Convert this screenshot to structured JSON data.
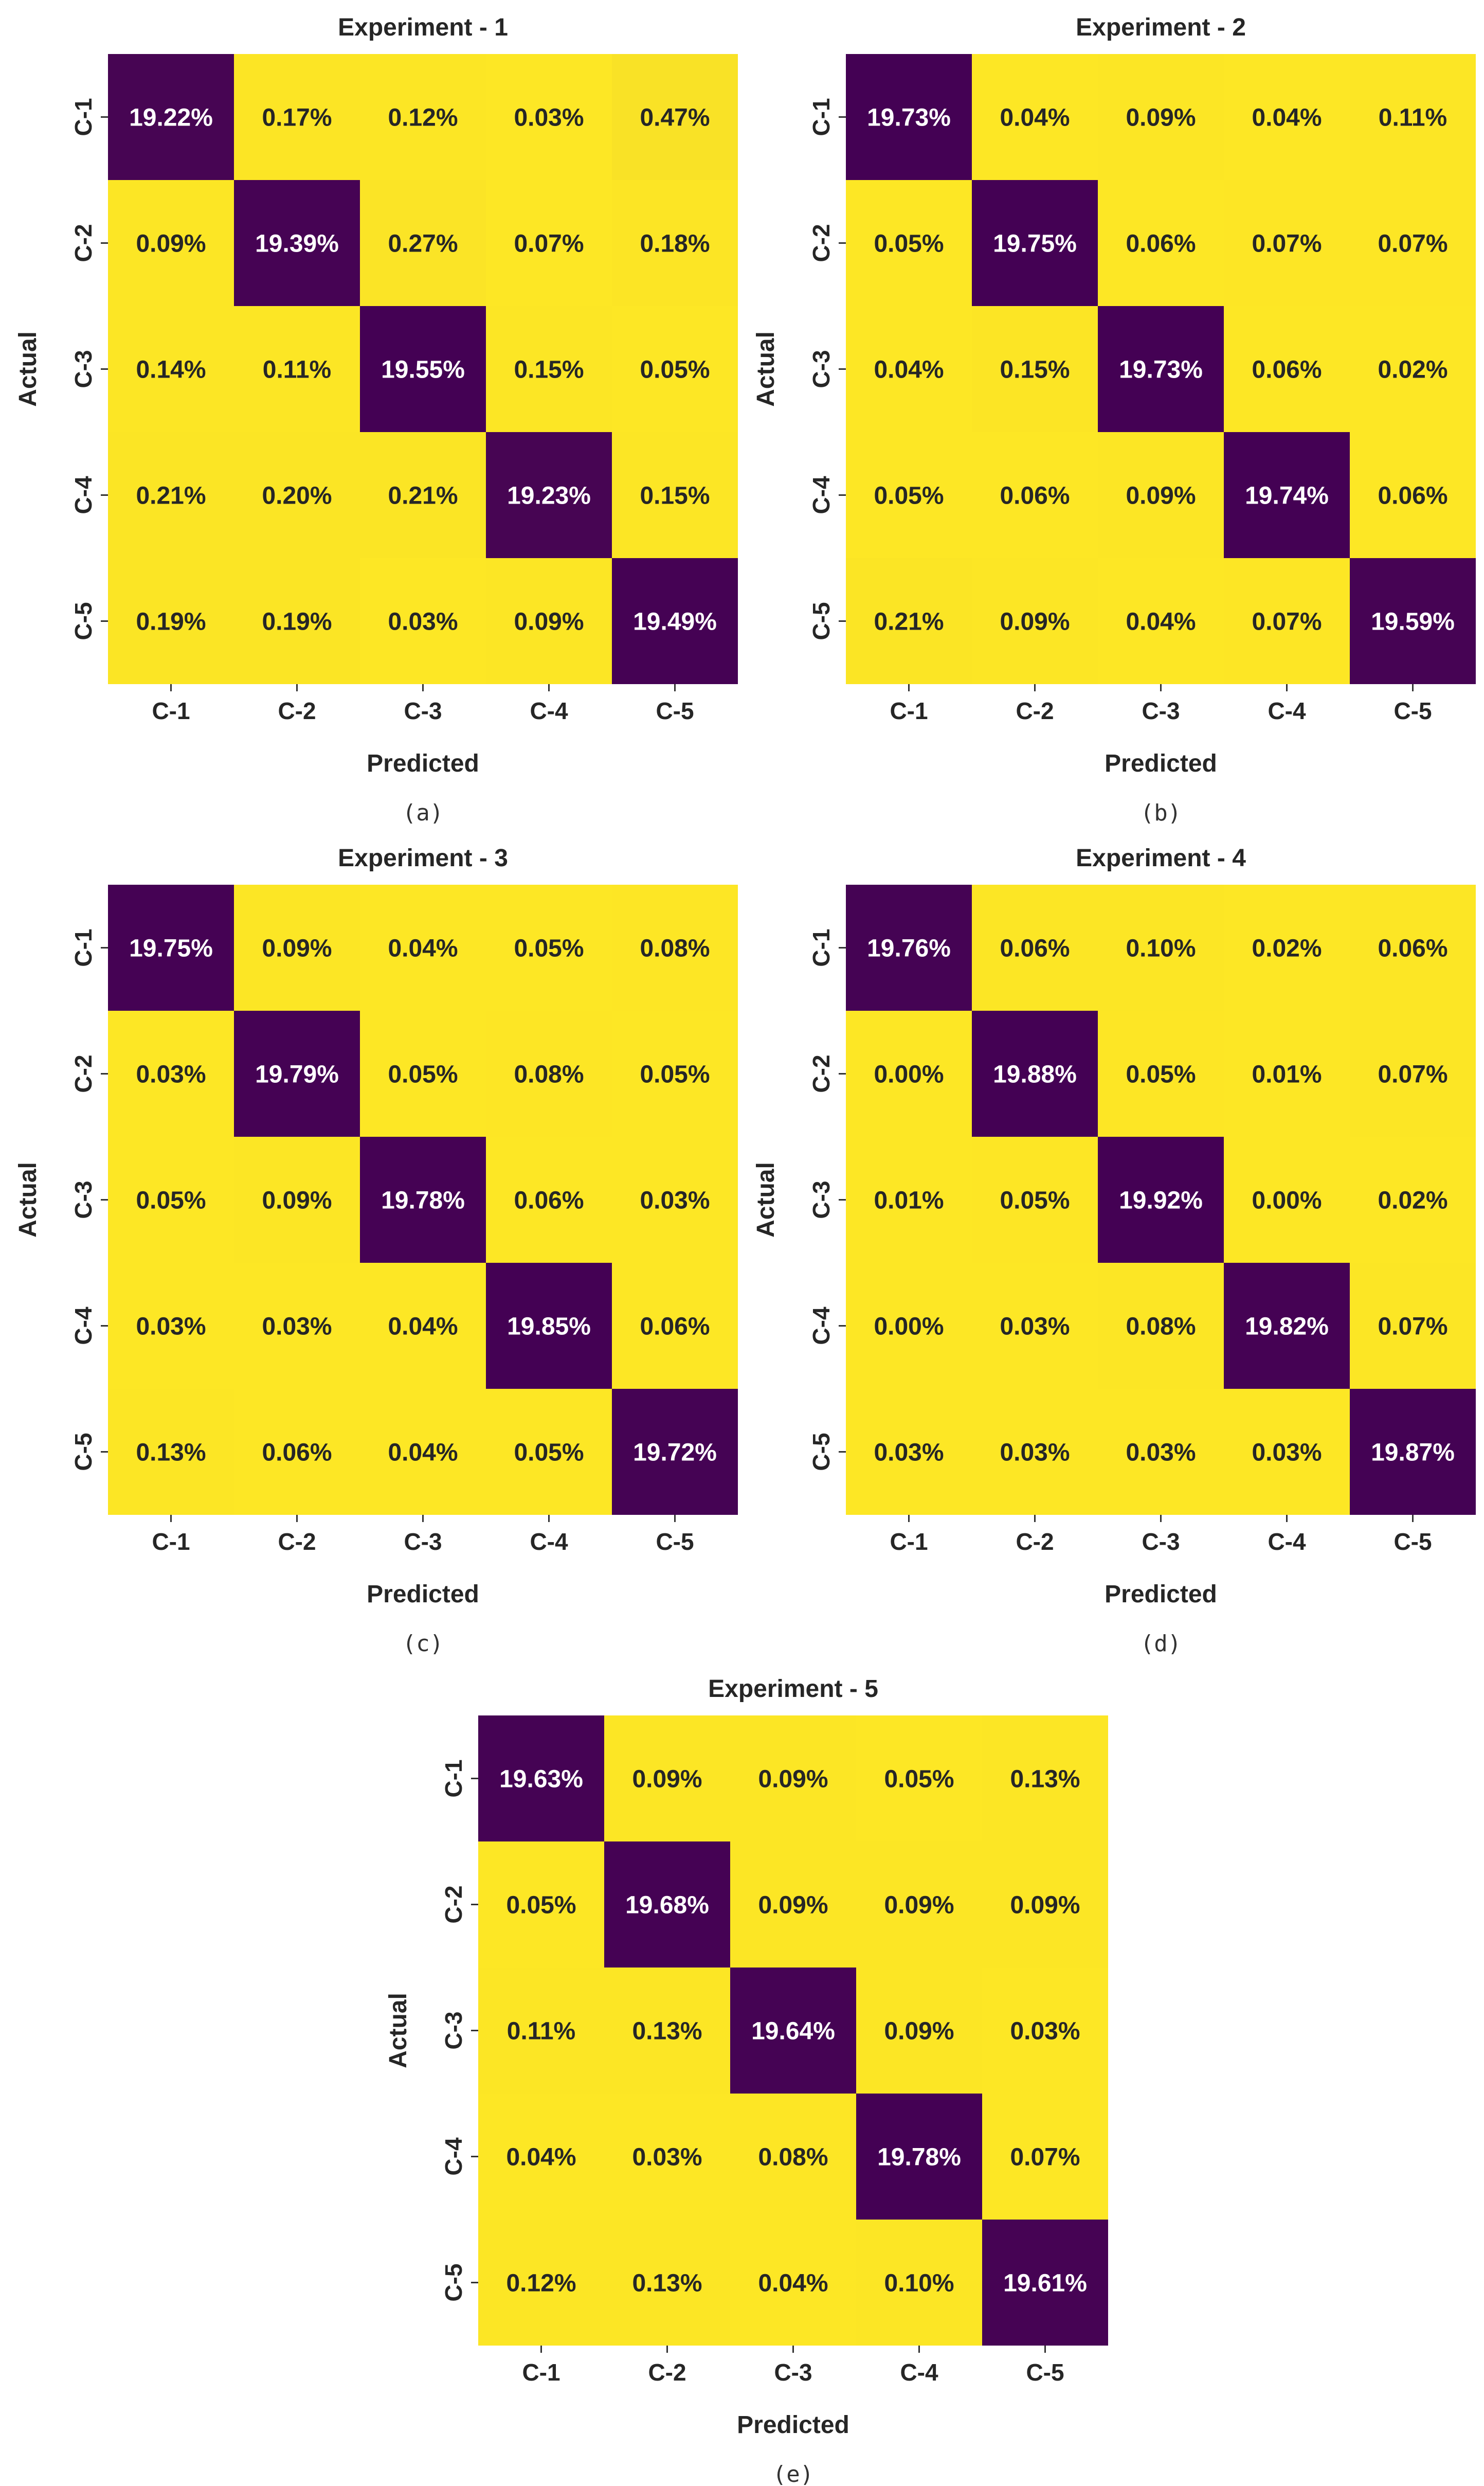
{
  "colors": {
    "high": "#440154",
    "low": "#fde725",
    "text_on_high": "#ffffff",
    "text_on_low": "#262626"
  },
  "chart_data": [
    {
      "type": "heatmap",
      "title": "Experiment - 1",
      "caption": "(a)",
      "xlabel": "Predicted",
      "ylabel": "Actual",
      "x_categories": [
        "C-1",
        "C-2",
        "C-3",
        "C-4",
        "C-5"
      ],
      "y_categories": [
        "C-1",
        "C-2",
        "C-3",
        "C-4",
        "C-5"
      ],
      "value_unit": "%",
      "values": [
        [
          19.22,
          0.17,
          0.12,
          0.03,
          0.47
        ],
        [
          0.09,
          19.39,
          0.27,
          0.07,
          0.18
        ],
        [
          0.14,
          0.11,
          19.55,
          0.15,
          0.05
        ],
        [
          0.21,
          0.2,
          0.21,
          19.23,
          0.15
        ],
        [
          0.19,
          0.19,
          0.03,
          0.09,
          19.49
        ]
      ],
      "labels": [
        [
          "19.22%",
          "0.17%",
          "0.12%",
          "0.03%",
          "0.47%"
        ],
        [
          "0.09%",
          "19.39%",
          "0.27%",
          "0.07%",
          "0.18%"
        ],
        [
          "0.14%",
          "0.11%",
          "19.55%",
          "0.15%",
          "0.05%"
        ],
        [
          "0.21%",
          "0.20%",
          "0.21%",
          "19.23%",
          "0.15%"
        ],
        [
          "0.19%",
          "0.19%",
          "0.03%",
          "0.09%",
          "19.49%"
        ]
      ]
    },
    {
      "type": "heatmap",
      "title": "Experiment - 2",
      "caption": "(b)",
      "xlabel": "Predicted",
      "ylabel": "Actual",
      "x_categories": [
        "C-1",
        "C-2",
        "C-3",
        "C-4",
        "C-5"
      ],
      "y_categories": [
        "C-1",
        "C-2",
        "C-3",
        "C-4",
        "C-5"
      ],
      "value_unit": "%",
      "values": [
        [
          19.73,
          0.04,
          0.09,
          0.04,
          0.11
        ],
        [
          0.05,
          19.75,
          0.06,
          0.07,
          0.07
        ],
        [
          0.04,
          0.15,
          19.73,
          0.06,
          0.02
        ],
        [
          0.05,
          0.06,
          0.09,
          19.74,
          0.06
        ],
        [
          0.21,
          0.09,
          0.04,
          0.07,
          19.59
        ]
      ],
      "labels": [
        [
          "19.73%",
          "0.04%",
          "0.09%",
          "0.04%",
          "0.11%"
        ],
        [
          "0.05%",
          "19.75%",
          "0.06%",
          "0.07%",
          "0.07%"
        ],
        [
          "0.04%",
          "0.15%",
          "19.73%",
          "0.06%",
          "0.02%"
        ],
        [
          "0.05%",
          "0.06%",
          "0.09%",
          "19.74%",
          "0.06%"
        ],
        [
          "0.21%",
          "0.09%",
          "0.04%",
          "0.07%",
          "19.59%"
        ]
      ]
    },
    {
      "type": "heatmap",
      "title": "Experiment - 3",
      "caption": "(c)",
      "xlabel": "Predicted",
      "ylabel": "Actual",
      "x_categories": [
        "C-1",
        "C-2",
        "C-3",
        "C-4",
        "C-5"
      ],
      "y_categories": [
        "C-1",
        "C-2",
        "C-3",
        "C-4",
        "C-5"
      ],
      "value_unit": "%",
      "values": [
        [
          19.75,
          0.09,
          0.04,
          0.05,
          0.08
        ],
        [
          0.03,
          19.79,
          0.05,
          0.08,
          0.05
        ],
        [
          0.05,
          0.09,
          19.78,
          0.06,
          0.03
        ],
        [
          0.03,
          0.03,
          0.04,
          19.85,
          0.06
        ],
        [
          0.13,
          0.06,
          0.04,
          0.05,
          19.72
        ]
      ],
      "labels": [
        [
          "19.75%",
          "0.09%",
          "0.04%",
          "0.05%",
          "0.08%"
        ],
        [
          "0.03%",
          "19.79%",
          "0.05%",
          "0.08%",
          "0.05%"
        ],
        [
          "0.05%",
          "0.09%",
          "19.78%",
          "0.06%",
          "0.03%"
        ],
        [
          "0.03%",
          "0.03%",
          "0.04%",
          "19.85%",
          "0.06%"
        ],
        [
          "0.13%",
          "0.06%",
          "0.04%",
          "0.05%",
          "19.72%"
        ]
      ]
    },
    {
      "type": "heatmap",
      "title": "Experiment - 4",
      "caption": "(d)",
      "xlabel": "Predicted",
      "ylabel": "Actual",
      "x_categories": [
        "C-1",
        "C-2",
        "C-3",
        "C-4",
        "C-5"
      ],
      "y_categories": [
        "C-1",
        "C-2",
        "C-3",
        "C-4",
        "C-5"
      ],
      "value_unit": "%",
      "values": [
        [
          19.76,
          0.06,
          0.1,
          0.02,
          0.06
        ],
        [
          0.0,
          19.88,
          0.05,
          0.01,
          0.07
        ],
        [
          0.01,
          0.05,
          19.92,
          0.0,
          0.02
        ],
        [
          0.0,
          0.03,
          0.08,
          19.82,
          0.07
        ],
        [
          0.03,
          0.03,
          0.03,
          0.03,
          19.87
        ]
      ],
      "labels": [
        [
          "19.76%",
          "0.06%",
          "0.10%",
          "0.02%",
          "0.06%"
        ],
        [
          "0.00%",
          "19.88%",
          "0.05%",
          "0.01%",
          "0.07%"
        ],
        [
          "0.01%",
          "0.05%",
          "19.92%",
          "0.00%",
          "0.02%"
        ],
        [
          "0.00%",
          "0.03%",
          "0.08%",
          "19.82%",
          "0.07%"
        ],
        [
          "0.03%",
          "0.03%",
          "0.03%",
          "0.03%",
          "19.87%"
        ]
      ]
    },
    {
      "type": "heatmap",
      "title": "Experiment - 5",
      "caption": "(e)",
      "xlabel": "Predicted",
      "ylabel": "Actual",
      "x_categories": [
        "C-1",
        "C-2",
        "C-3",
        "C-4",
        "C-5"
      ],
      "y_categories": [
        "C-1",
        "C-2",
        "C-3",
        "C-4",
        "C-5"
      ],
      "value_unit": "%",
      "values": [
        [
          19.63,
          0.09,
          0.09,
          0.05,
          0.13
        ],
        [
          0.05,
          19.68,
          0.09,
          0.09,
          0.09
        ],
        [
          0.11,
          0.13,
          19.64,
          0.09,
          0.03
        ],
        [
          0.04,
          0.03,
          0.08,
          19.78,
          0.07
        ],
        [
          0.12,
          0.13,
          0.04,
          0.1,
          19.61
        ]
      ],
      "labels": [
        [
          "19.63%",
          "0.09%",
          "0.09%",
          "0.05%",
          "0.13%"
        ],
        [
          "0.05%",
          "19.68%",
          "0.09%",
          "0.09%",
          "0.09%"
        ],
        [
          "0.11%",
          "0.13%",
          "19.64%",
          "0.09%",
          "0.03%"
        ],
        [
          "0.04%",
          "0.03%",
          "0.08%",
          "19.78%",
          "0.07%"
        ],
        [
          "0.12%",
          "0.13%",
          "0.04%",
          "0.10%",
          "19.61%"
        ]
      ]
    }
  ]
}
